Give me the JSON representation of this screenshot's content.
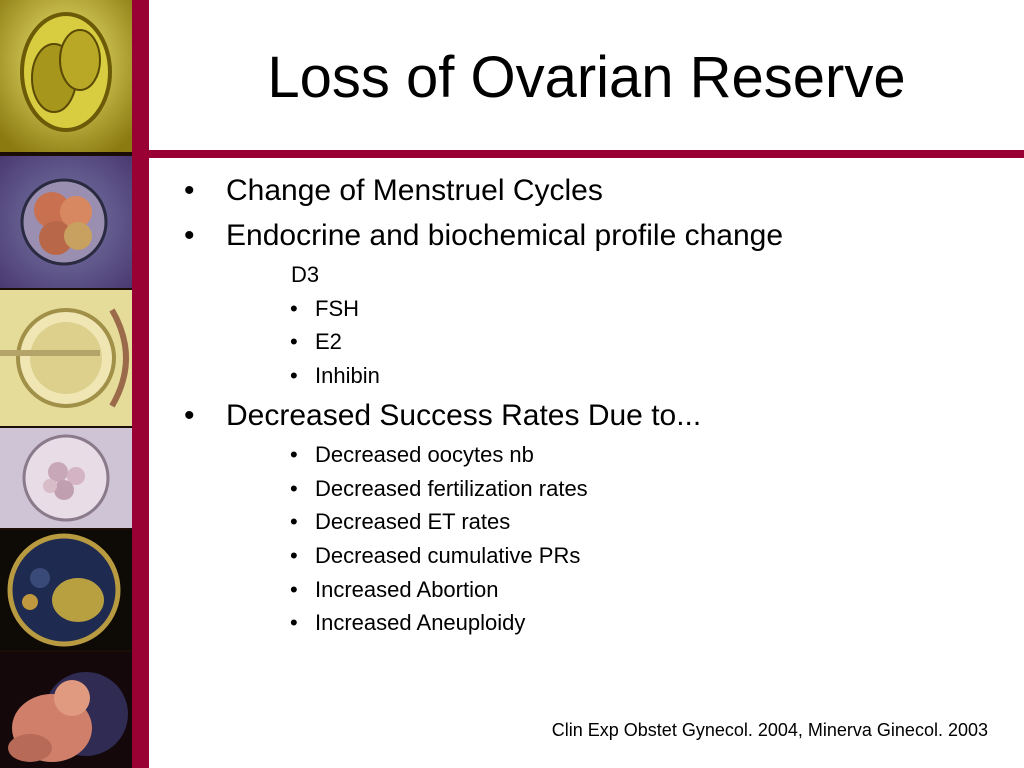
{
  "slide": {
    "title": "Loss of Ovarian Reserve",
    "bullets": [
      {
        "text": "Change of Menstruel Cycles",
        "sub": []
      },
      {
        "text": "Endocrine and biochemical profile change",
        "heading": "D3",
        "sub": [
          "FSH",
          "E2",
          "Inhibin"
        ]
      },
      {
        "text": "Decreased Success Rates Due to...",
        "sub": [
          "Decreased oocytes nb",
          "Decreased fertilization rates",
          "Decreased ET rates",
          "Decreased cumulative PRs",
          "Increased Abortion",
          "Increased Aneuploidy"
        ]
      }
    ],
    "bullet_symbol": "•",
    "citation": "Clin Exp Obstet Gynecol. 2004, Minerva Ginecol. 2003"
  },
  "colors": {
    "accent": "#990033",
    "background": "#ffffff",
    "text": "#000000"
  },
  "filmstrip": {
    "icons": [
      "two-cell-embryo-icon",
      "four-cell-embryo-icon",
      "oocyte-injection-icon",
      "morula-icon",
      "blastocyst-icon",
      "fetus-icon"
    ]
  }
}
